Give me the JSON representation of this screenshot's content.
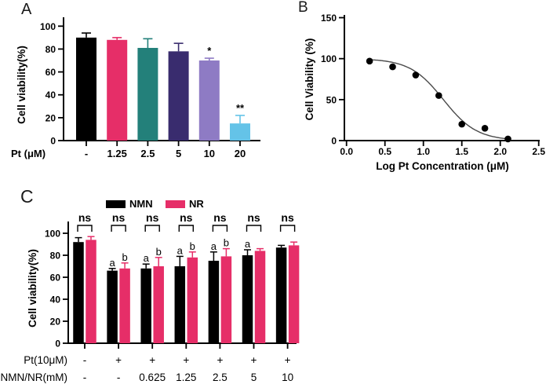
{
  "panels": {
    "a": {
      "label": "A"
    },
    "b": {
      "label": "B"
    },
    "c": {
      "label": "C"
    }
  },
  "colors": {
    "black": "#000000",
    "pink": "#E62E68",
    "teal": "#23807A",
    "dark_purple": "#392C6E",
    "light_purple": "#8E7BC4",
    "light_blue": "#64C3E8"
  },
  "chart_data": [
    {
      "id": "A",
      "type": "bar",
      "title": "",
      "ylabel": "Cell viability(%)",
      "ylim": [
        0,
        100
      ],
      "yticks": [
        0,
        20,
        40,
        60,
        80,
        100
      ],
      "x_row_label": "Pt (μM)",
      "categories": [
        "-",
        "1.25",
        "2.5",
        "5",
        "10",
        "20"
      ],
      "values": [
        90,
        88,
        81,
        78,
        70,
        15
      ],
      "errors": [
        4,
        2,
        8,
        7,
        2,
        7
      ],
      "bar_colors": [
        "#000000",
        "#E62E68",
        "#23807A",
        "#392C6E",
        "#8E7BC4",
        "#64C3E8"
      ],
      "significance": [
        "",
        "",
        "",
        "",
        "*",
        "**"
      ],
      "grid": false
    },
    {
      "id": "B",
      "type": "scatter",
      "title": "",
      "ylabel": "Cell Viability (%)",
      "xlabel": "Log Pt Concentration (μM)",
      "ylim": [
        0,
        150
      ],
      "yticks": [
        0,
        50,
        100,
        150
      ],
      "xlim": [
        0,
        2.5
      ],
      "xticks": [
        "0.0",
        "0.5",
        "1.0",
        "1.5",
        "2.0",
        "2.5"
      ],
      "points_x": [
        0.3,
        0.6,
        0.9,
        1.2,
        1.5,
        1.8,
        2.1
      ],
      "points_y": [
        97,
        90,
        80,
        55,
        20,
        15,
        2
      ],
      "fit_curve": {
        "model": "sigmoid-dose-response",
        "top": 100,
        "bottom": 0,
        "log_ec50": 1.26,
        "hill": 2.0,
        "x_start": 0.28,
        "x_end": 2.13
      },
      "point_color": "#000000",
      "curve_color": "#4a4a4a",
      "grid": false
    },
    {
      "id": "C",
      "type": "grouped-bar",
      "title": "",
      "ylabel": "Cell viability(%)",
      "ylim": [
        0,
        100
      ],
      "yticks": [
        0,
        20,
        40,
        60,
        80,
        100
      ],
      "legend": [
        {
          "name": "NMN",
          "color": "#000000"
        },
        {
          "name": "NR",
          "color": "#E62E68"
        }
      ],
      "legend_position": "top",
      "row_labels": [
        "Pt(10μM)",
        "NMN/NR(mM)"
      ],
      "rows": [
        [
          "-",
          "+",
          "+",
          "+",
          "+",
          "+",
          "+"
        ],
        [
          "-",
          "-",
          "0.625",
          "1.25",
          "2.5",
          "5",
          "10"
        ]
      ],
      "series": [
        {
          "name": "NMN",
          "color": "#000000",
          "values": [
            92,
            66,
            68,
            70,
            75,
            80,
            87
          ],
          "errors": [
            4,
            2,
            4,
            9,
            8,
            5,
            2
          ],
          "letters": [
            "",
            "a",
            "a",
            "a",
            "a",
            "a",
            ""
          ]
        },
        {
          "name": "NR",
          "color": "#E62E68",
          "values": [
            94,
            68,
            70,
            78,
            79,
            84,
            89
          ],
          "errors": [
            3,
            5,
            8,
            5,
            7,
            2,
            3
          ],
          "letters": [
            "",
            "b",
            "b",
            "b",
            "b",
            "",
            ""
          ]
        }
      ],
      "group_significance": [
        "ns",
        "ns",
        "ns",
        "ns",
        "ns",
        "ns",
        "ns"
      ],
      "grid": false
    }
  ]
}
